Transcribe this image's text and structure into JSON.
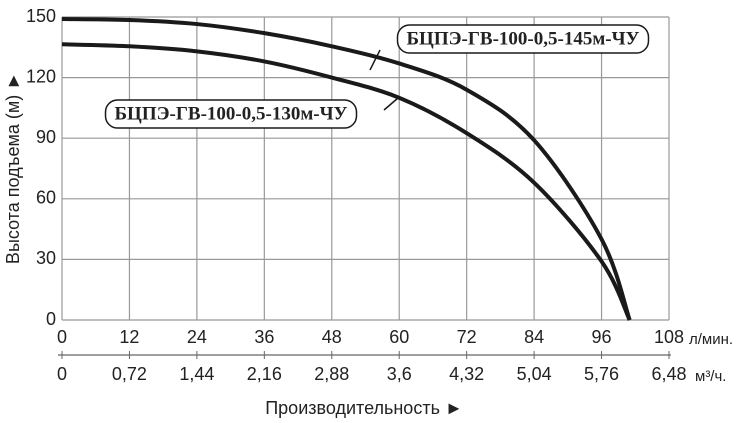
{
  "chart_data": {
    "type": "line",
    "x_label": "Производительность ►",
    "y_label": "Высота подъема (м) ►",
    "x_unit": "л/мин.",
    "x2_unit": "м³/ч.",
    "xlim": [
      0,
      108
    ],
    "xticks": [
      0,
      12,
      24,
      36,
      48,
      60,
      72,
      84,
      96,
      108
    ],
    "x2lim": [
      0,
      6.48
    ],
    "x2ticks": [
      0,
      {
        "value": 0.72,
        "label": "0,72"
      },
      {
        "value": 1.44,
        "label": "1,44"
      },
      {
        "value": 2.16,
        "label": "2,16"
      },
      {
        "value": 2.88,
        "label": "2,88"
      },
      {
        "value": 3.6,
        "label": "3,6"
      },
      {
        "value": 4.32,
        "label": "4,32"
      },
      {
        "value": 5.04,
        "label": "5,04"
      },
      {
        "value": 5.76,
        "label": "5,76"
      },
      {
        "value": 6.48,
        "label": "6,48"
      }
    ],
    "ylim": [
      0,
      150
    ],
    "yticks": [
      0,
      30,
      60,
      90,
      120,
      150
    ],
    "grid": true,
    "x": [
      0,
      12,
      24,
      36,
      48,
      60,
      72,
      84,
      96,
      101
    ],
    "series": [
      {
        "name": "БЦПЭ-ГВ-100-0,5-145м-ЧУ",
        "color": "#1a1a1a",
        "values": [
          149,
          148.5,
          146.5,
          142,
          135.5,
          127,
          114,
          89,
          40,
          0
        ]
      },
      {
        "name": "БЦПЭ-ГВ-100-0,5-130м-ЧУ",
        "color": "#1a1a1a",
        "values": [
          136.5,
          135.5,
          133,
          128,
          120,
          110,
          92.5,
          68,
          29,
          0
        ]
      }
    ]
  }
}
